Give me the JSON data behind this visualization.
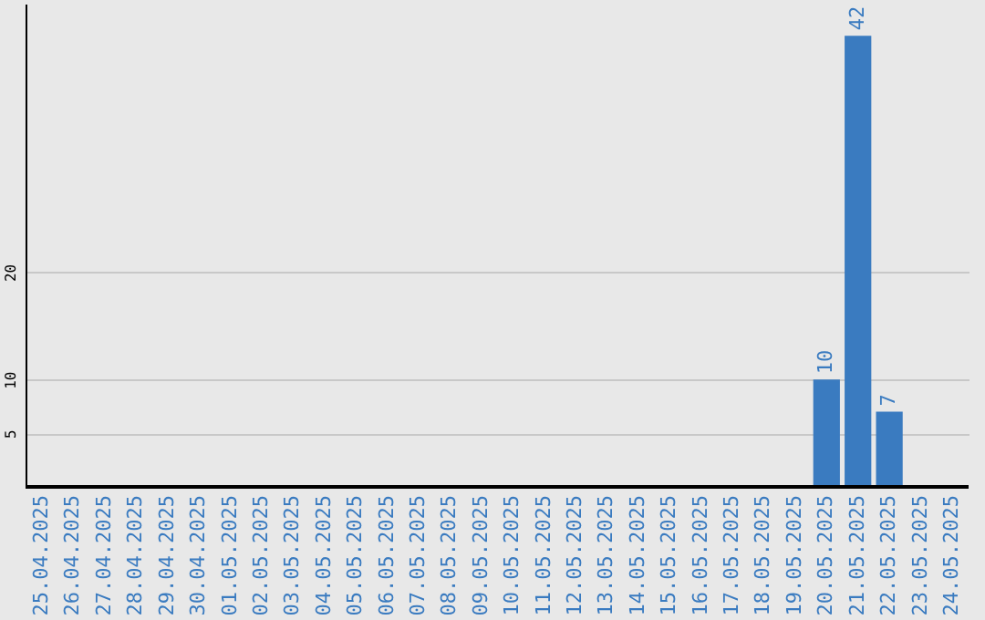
{
  "chart_data": {
    "type": "bar",
    "categories": [
      "25.04.2025",
      "26.04.2025",
      "27.04.2025",
      "28.04.2025",
      "29.04.2025",
      "30.04.2025",
      "01.05.2025",
      "02.05.2025",
      "03.05.2025",
      "04.05.2025",
      "05.05.2025",
      "06.05.2025",
      "07.05.2025",
      "08.05.2025",
      "09.05.2025",
      "10.05.2025",
      "11.05.2025",
      "12.05.2025",
      "13.05.2025",
      "14.05.2025",
      "15.05.2025",
      "16.05.2025",
      "17.05.2025",
      "18.05.2025",
      "19.05.2025",
      "20.05.2025",
      "21.05.2025",
      "22.05.2025",
      "23.05.2025",
      "24.05.2025"
    ],
    "values": [
      null,
      null,
      null,
      null,
      null,
      null,
      null,
      null,
      null,
      null,
      null,
      null,
      null,
      null,
      null,
      null,
      null,
      null,
      null,
      null,
      null,
      null,
      null,
      null,
      null,
      10,
      42,
      7,
      null,
      null
    ],
    "color": "#3a7bc0",
    "ylim": [
      0,
      45
    ],
    "yticks": [
      5,
      10,
      20
    ],
    "grid": "y",
    "data_labels": true
  }
}
